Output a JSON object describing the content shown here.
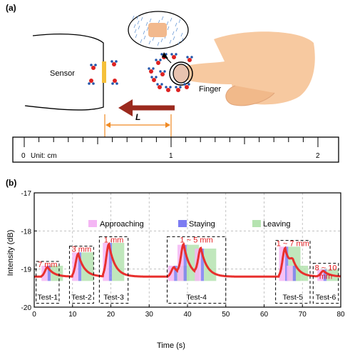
{
  "panel_a": {
    "label": "(a)",
    "sensor_label": "Sensor",
    "finger_label": "Finger",
    "distance_label": "L",
    "ruler": {
      "ticks": [
        "0",
        "1",
        "2"
      ],
      "unit": "Unit: cm"
    }
  },
  "panel_b": {
    "label": "(b)",
    "legend": [
      "Approaching",
      "Staying",
      "Leaving"
    ],
    "colors": {
      "approaching": "#f4b6f4",
      "staying": "#7c7cf2",
      "leaving": "#b5e3b0",
      "signal": "#e8302e",
      "annotation": "#e41a1c"
    },
    "tests": [
      {
        "name": "Test-1",
        "distance": "7 mm"
      },
      {
        "name": "Test-2",
        "distance": "3 mm"
      },
      {
        "name": "Test-3",
        "distance": "1 mm"
      },
      {
        "name": "Test-4",
        "distance": "1 ~ 5 mm"
      },
      {
        "name": "Test-5",
        "distance": "1 ~ 7 mm"
      },
      {
        "name": "Test-6",
        "distance": "8 ~ 10\nmm"
      }
    ]
  },
  "chart_data": {
    "type": "line",
    "xlabel": "Time (s)",
    "ylabel": "Intensity (dB)",
    "xlim": [
      0,
      80
    ],
    "ylim": [
      -20,
      -17
    ],
    "xticks": [
      0,
      10,
      20,
      30,
      40,
      50,
      60,
      70,
      80
    ],
    "yticks": [
      -17,
      -18,
      -19,
      -20
    ],
    "grid": true,
    "baseline": -19.2,
    "peaks": [
      {
        "t": 3.5,
        "peak": -18.95
      },
      {
        "t": 11.5,
        "peak": -18.6
      },
      {
        "t": 19.5,
        "peak": -18.35
      },
      {
        "t": 36.5,
        "peak": -18.95
      },
      {
        "t": 39.0,
        "peak": -18.4
      },
      {
        "t": 43.5,
        "peak": -18.5
      },
      {
        "t": 65.5,
        "peak": -18.45
      },
      {
        "t": 67.5,
        "peak": -18.95
      },
      {
        "t": 75.5,
        "peak": -19.05
      }
    ]
  }
}
